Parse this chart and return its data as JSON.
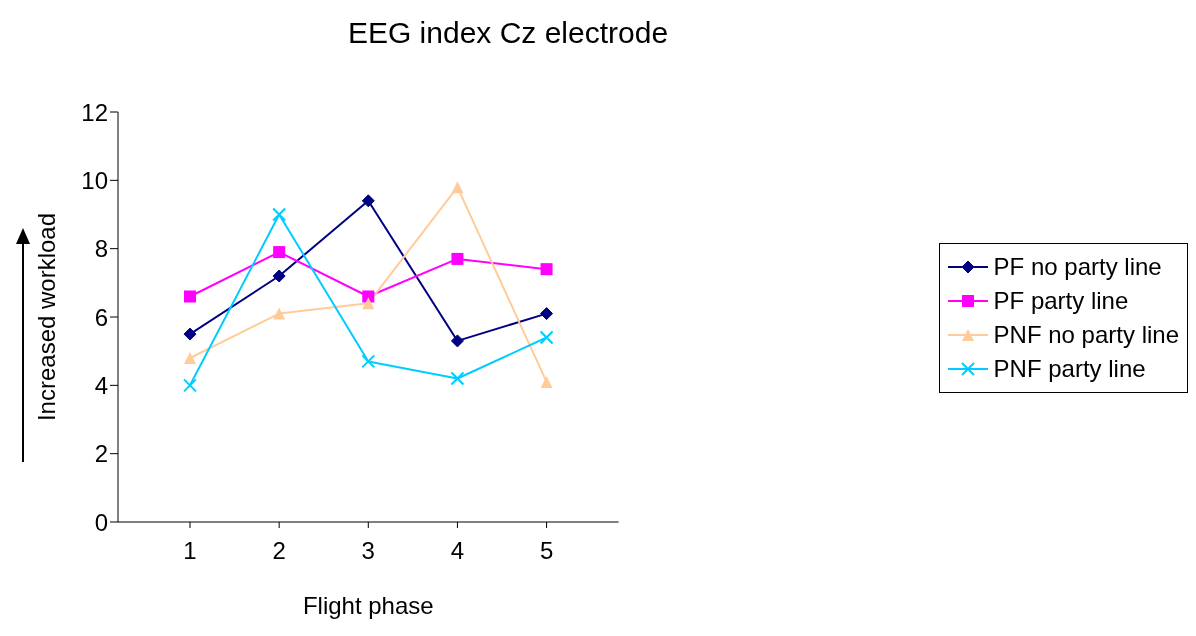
{
  "chart_data": {
    "type": "line",
    "title": "EEG index Cz electrode",
    "xlabel": "Flight phase",
    "ylabel": "Increased workload",
    "categories": [
      "1",
      "2",
      "3",
      "4",
      "5"
    ],
    "series": [
      {
        "name": "PF no party line",
        "color": "#000080",
        "marker": "diamond",
        "values": [
          5.5,
          7.2,
          9.4,
          5.3,
          6.1
        ]
      },
      {
        "name": "PF party line",
        "color": "#ff00ff",
        "marker": "square",
        "values": [
          6.6,
          7.9,
          6.6,
          7.7,
          7.4
        ]
      },
      {
        "name": "PNF no party line",
        "color": "#ffcc99",
        "marker": "triangle",
        "values": [
          4.8,
          6.1,
          6.4,
          9.8,
          4.1
        ]
      },
      {
        "name": "PNF party line",
        "color": "#00ccff",
        "marker": "cross",
        "values": [
          4.0,
          9.0,
          4.7,
          4.2,
          5.4
        ]
      }
    ],
    "ylim": [
      0,
      12
    ],
    "yticks": [
      0,
      2,
      4,
      6,
      8,
      10,
      12
    ],
    "grid": false,
    "legend": "right",
    "line_style": "solid"
  }
}
